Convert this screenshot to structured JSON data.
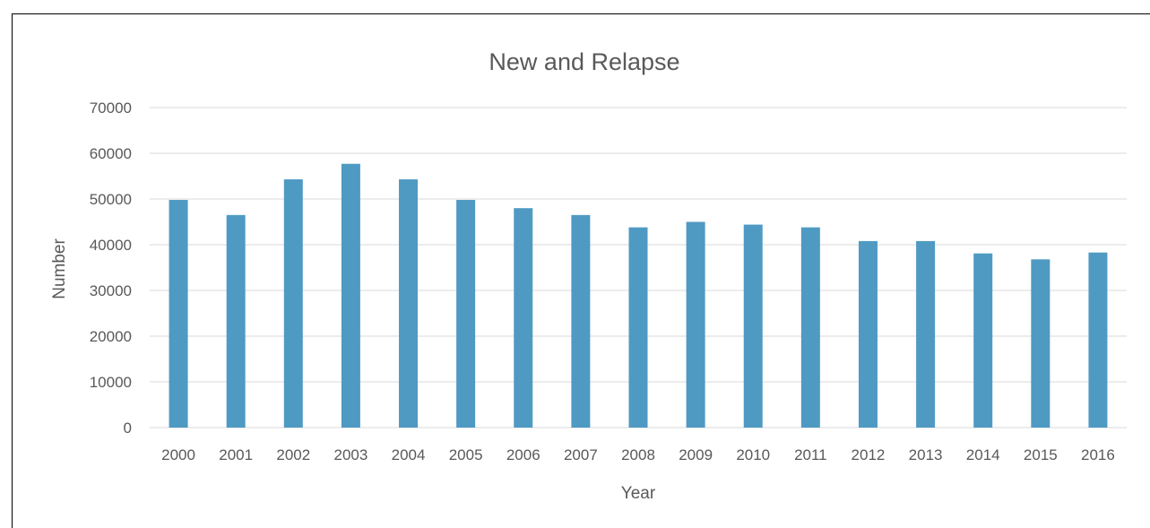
{
  "chart_data": {
    "type": "bar",
    "title": "New and Relapse",
    "xlabel": "Year",
    "ylabel": "Number",
    "categories": [
      "2000",
      "2001",
      "2002",
      "2003",
      "2004",
      "2005",
      "2006",
      "2007",
      "2008",
      "2009",
      "2010",
      "2011",
      "2012",
      "2013",
      "2014",
      "2015",
      "2016"
    ],
    "values": [
      49800,
      46500,
      54300,
      57700,
      54300,
      49800,
      48000,
      46500,
      43800,
      45000,
      44400,
      43800,
      40800,
      40800,
      38100,
      36800,
      38300
    ],
    "ylim": [
      0,
      70000
    ],
    "yticks": [
      "0",
      "10000",
      "20000",
      "30000",
      "40000",
      "50000",
      "60000",
      "70000"
    ],
    "grid": true,
    "legend": "none",
    "bar_color": "#4f9ac3"
  }
}
